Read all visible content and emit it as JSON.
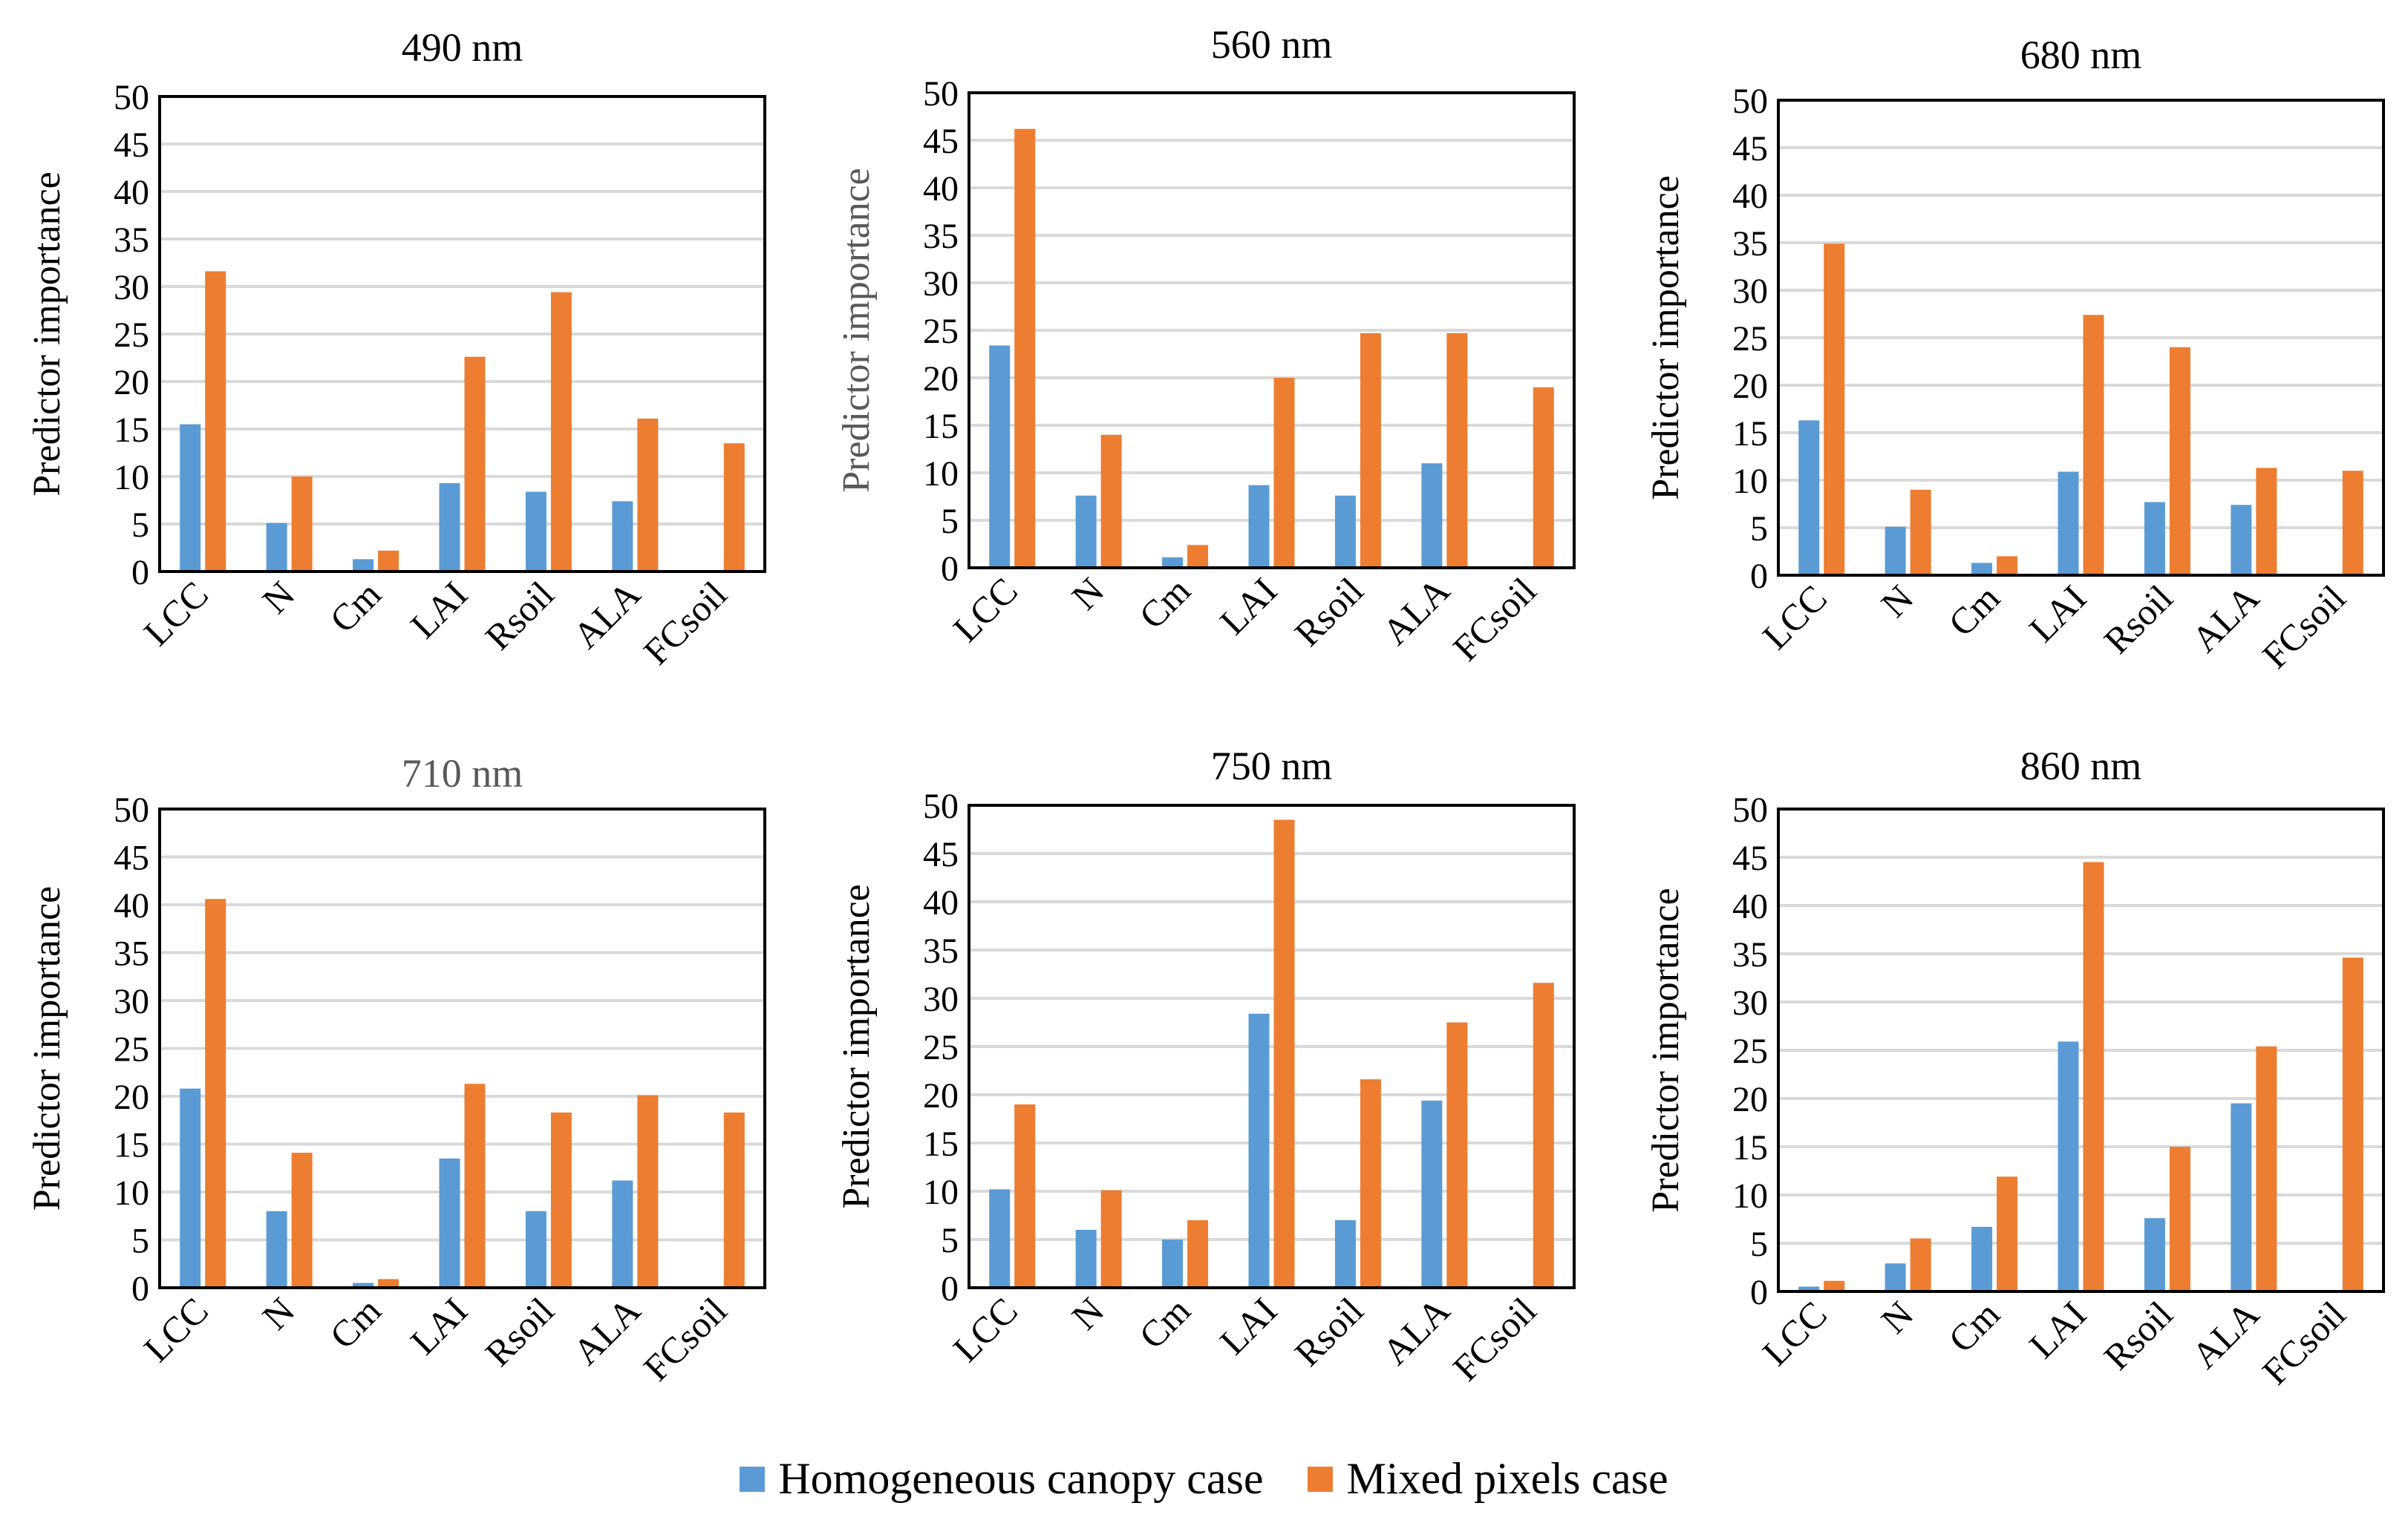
{
  "legend": {
    "homogeneous": "Homogeneous canopy case",
    "mixed": "Mixed pixels case"
  },
  "colors": {
    "homogeneous": "#5B9BD5",
    "mixed": "#ED7D31"
  },
  "chart_data": [
    {
      "type": "bar",
      "title": "490 nm",
      "ylabel": "Predictor importance",
      "ylim": [
        0,
        50
      ],
      "yticks": [
        "0",
        "5",
        "10",
        "15",
        "20",
        "25",
        "30",
        "35",
        "40",
        "45",
        "50"
      ],
      "categories": [
        "LCC",
        "N",
        "Cm",
        "LAI",
        "Rsoil",
        "ALA",
        "FCsoil"
      ],
      "series": [
        {
          "name": "Homogeneous canopy case",
          "values": [
            15.5,
            5.1,
            1.3,
            9.3,
            8.4,
            7.4,
            0
          ]
        },
        {
          "name": "Mixed pixels case",
          "values": [
            31.6,
            10.0,
            2.2,
            22.6,
            29.4,
            16.1,
            13.5
          ]
        }
      ]
    },
    {
      "type": "bar",
      "title": "560 nm",
      "ylabel": "Predictor importance",
      "ylim": [
        0,
        50
      ],
      "yticks": [
        "0",
        "5",
        "10",
        "15",
        "20",
        "25",
        "30",
        "35",
        "40",
        "45",
        "50"
      ],
      "categories": [
        "LCC",
        "N",
        "Cm",
        "LAI",
        "Rsoil",
        "ALA",
        "FCsoil"
      ],
      "series": [
        {
          "name": "Homogeneous canopy case",
          "values": [
            23.4,
            7.6,
            1.1,
            8.7,
            7.6,
            11.0,
            0
          ]
        },
        {
          "name": "Mixed pixels case",
          "values": [
            46.2,
            14.0,
            2.4,
            20.0,
            24.7,
            24.7,
            19.0
          ]
        }
      ]
    },
    {
      "type": "bar",
      "title": "680 nm",
      "ylabel": "Predictor importance",
      "ylim": [
        0,
        50
      ],
      "yticks": [
        "0",
        "5",
        "10",
        "15",
        "20",
        "25",
        "30",
        "35",
        "40",
        "45",
        "50"
      ],
      "categories": [
        "LCC",
        "N",
        "Cm",
        "LAI",
        "Rsoil",
        "ALA",
        "FCsoil"
      ],
      "series": [
        {
          "name": "Homogeneous canopy case",
          "values": [
            16.3,
            5.1,
            1.3,
            10.9,
            7.7,
            7.4,
            0
          ]
        },
        {
          "name": "Mixed pixels case",
          "values": [
            34.9,
            9.0,
            2.0,
            27.4,
            24.0,
            11.3,
            11.0
          ]
        }
      ]
    },
    {
      "type": "bar",
      "title": "710 nm",
      "ylabel": "Predictor importance",
      "ylim": [
        0,
        50
      ],
      "yticks": [
        "0",
        "5",
        "10",
        "15",
        "20",
        "25",
        "30",
        "35",
        "40",
        "45",
        "50"
      ],
      "categories": [
        "LCC",
        "N",
        "Cm",
        "LAI",
        "Rsoil",
        "ALA",
        "FCsoil"
      ],
      "series": [
        {
          "name": "Homogeneous canopy case",
          "values": [
            20.8,
            8.0,
            0.5,
            13.5,
            8.0,
            11.2,
            0
          ]
        },
        {
          "name": "Mixed pixels case",
          "values": [
            40.6,
            14.1,
            0.9,
            21.3,
            18.3,
            20.1,
            18.3
          ]
        }
      ]
    },
    {
      "type": "bar",
      "title": "750 nm",
      "ylabel": "Predictor importance",
      "ylim": [
        0,
        50
      ],
      "yticks": [
        "0",
        "5",
        "10",
        "15",
        "20",
        "25",
        "30",
        "35",
        "40",
        "45",
        "50"
      ],
      "categories": [
        "LCC",
        "N",
        "Cm",
        "LAI",
        "Rsoil",
        "ALA",
        "FCsoil"
      ],
      "series": [
        {
          "name": "Homogeneous canopy case",
          "values": [
            10.2,
            6.0,
            5.0,
            28.4,
            7.0,
            19.4,
            0
          ]
        },
        {
          "name": "Mixed pixels case",
          "values": [
            19.0,
            10.1,
            7.0,
            48.5,
            21.6,
            27.5,
            31.6
          ]
        }
      ]
    },
    {
      "type": "bar",
      "title": "860 nm",
      "ylabel": "Predictor importance",
      "ylim": [
        0,
        50
      ],
      "yticks": [
        "0",
        "5",
        "10",
        "15",
        "20",
        "25",
        "30",
        "35",
        "40",
        "45",
        "50"
      ],
      "categories": [
        "LCC",
        "N",
        "Cm",
        "LAI",
        "Rsoil",
        "ALA",
        "FCsoil"
      ],
      "series": [
        {
          "name": "Homogeneous canopy case",
          "values": [
            0.5,
            2.9,
            6.7,
            25.9,
            7.6,
            19.5,
            0
          ]
        },
        {
          "name": "Mixed pixels case",
          "values": [
            1.1,
            5.5,
            11.9,
            44.5,
            15.0,
            25.4,
            34.6
          ]
        }
      ]
    }
  ]
}
